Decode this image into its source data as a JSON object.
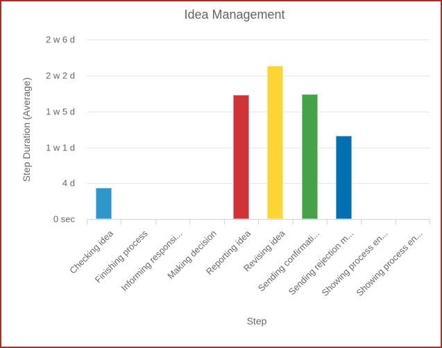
{
  "window": {
    "frame_border_color": "#a33028",
    "background_color": "#ffffff"
  },
  "chart_data": {
    "type": "bar",
    "title": "Idea Management",
    "xlabel": "Step",
    "ylabel": "Step Duration (Average)",
    "unit": "days",
    "categories": [
      "Checking idea",
      "Finishing process",
      "Informing responsi...",
      "Making decision",
      "Reporting idea",
      "Revising idea",
      "Sending confirmati...",
      "Sending rejection m...",
      "Showing process en...",
      "Showing process en..."
    ],
    "values": [
      3.5,
      0,
      0,
      0,
      13.8,
      17.1,
      13.9,
      9.3,
      0,
      0
    ],
    "bar_colors": [
      "#2d96ca",
      null,
      null,
      null,
      "#d03437",
      "#fcd535",
      "#46a247",
      "#0070b2",
      null,
      null
    ],
    "ylim": [
      0,
      20
    ],
    "yticks": [
      {
        "label": "0 sec",
        "days": 0
      },
      {
        "label": "4 d",
        "days": 4
      },
      {
        "label": "1 w 1 d",
        "days": 8
      },
      {
        "label": "1 w 5 d",
        "days": 12
      },
      {
        "label": "2 w 2 d",
        "days": 16
      },
      {
        "label": "2 w 6 d",
        "days": 20
      }
    ],
    "grid": "horizontal-only",
    "legend": "none",
    "colors": {
      "gridline": "#e6e6e6",
      "axis_line": "#ccd6eb",
      "tick_label_text": "#666666",
      "axis_title_text": "#666666",
      "chart_title_text": "#5f6368"
    }
  }
}
